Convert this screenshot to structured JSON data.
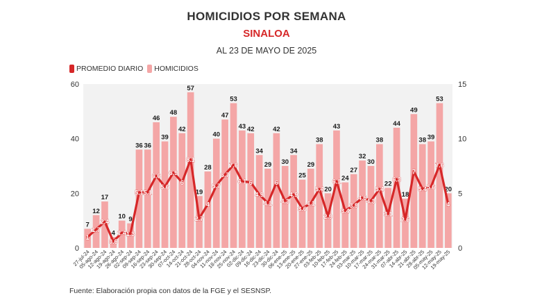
{
  "header": {
    "title": "HOMICIDIOS POR SEMANA",
    "subtitle": "SINALOA",
    "date_line": "AL 23 DE MAYO DE 2025"
  },
  "legend": {
    "items": [
      {
        "label": "PROMEDIO DIARIO",
        "color": "#d62728"
      },
      {
        "label": "HOMICIDIOS",
        "color": "#f4a6a6"
      }
    ]
  },
  "footer": {
    "source": "Fuente: Elaboración propia con datos de la FGE y el SESNSP."
  },
  "chart_data": {
    "type": "bar",
    "title": "HOMICIDIOS POR SEMANA",
    "subtitle": "SINALOA",
    "categories": [
      "27-jul-24",
      "05-ago-24",
      "12-ago-24",
      "19-ago-24",
      "26-ago-24",
      "02-sep-24",
      "09-sep-24",
      "16-sep-24",
      "23-sep-24",
      "30-sep-24",
      "07-oct-24",
      "14-oct-24",
      "21-oct-24",
      "28-oct-24",
      "04-nov-24",
      "11-nov-24",
      "18-nov-24",
      "25-nov-24",
      "02-dic-24",
      "09-dic-24",
      "16-dic-24",
      "23-dic-24",
      "30-dic-24",
      "06-ene-25",
      "13-ene-25",
      "20-ene-25",
      "27-ene-25",
      "03-feb-25",
      "10-feb-25",
      "17-feb-25",
      "24-feb-25",
      "03-mar-25",
      "10-mar-25",
      "17-mar-25",
      "24-mar-25",
      "31-mar-25",
      "07-abr-25",
      "14-abr-25",
      "21-abr-25",
      "28-abr-25",
      "05-may-25",
      "12-may-25",
      "19-may-25"
    ],
    "series": [
      {
        "name": "HOMICIDIOS",
        "axis": "left",
        "color": "#f4a6a6",
        "values": [
          7,
          12,
          17,
          4,
          10,
          9,
          36,
          36,
          46,
          39,
          48,
          42,
          57,
          19,
          28,
          40,
          47,
          53,
          43,
          42,
          34,
          29,
          42,
          30,
          34,
          25,
          29,
          38,
          20,
          43,
          24,
          27,
          32,
          30,
          38,
          22,
          44,
          18,
          49,
          38,
          39,
          53,
          20
        ],
        "labels": [
          "7",
          "12",
          "17",
          "4",
          "10",
          "9",
          "36",
          "36",
          "46",
          "39",
          "48",
          "42",
          "57",
          "19",
          "28",
          "40",
          "47",
          "53",
          "43",
          "42",
          "34",
          "29",
          "42",
          "30",
          "34",
          "25",
          "29",
          "38",
          "20",
          "43",
          "24",
          "27",
          "32",
          "30",
          "38",
          "22",
          "44",
          "18",
          "49",
          "38",
          "39",
          "53",
          "20"
        ]
      },
      {
        "name": "PROMEDIO DIARIO",
        "axis": "right",
        "type": "line",
        "color": "#d62728",
        "values": [
          1.0,
          1.7,
          2.4,
          0.6,
          1.4,
          1.3,
          5.1,
          5.1,
          6.6,
          5.6,
          6.9,
          6.0,
          8.1,
          2.7,
          4.0,
          5.7,
          6.7,
          7.6,
          6.1,
          6.0,
          4.9,
          4.1,
          6.0,
          4.3,
          4.9,
          3.6,
          4.1,
          5.4,
          2.9,
          6.1,
          3.4,
          3.9,
          4.6,
          4.3,
          5.4,
          3.1,
          6.3,
          2.6,
          7.0,
          5.4,
          5.6,
          7.6,
          4.0
        ],
        "labels": [
          "1",
          "1.7",
          "2.4",
          "0.6",
          "1.4",
          "1.3",
          "5.1",
          "5.1",
          "6.6",
          "5.6",
          "6.9",
          "6",
          "8.1",
          "2.7",
          "4",
          "5.7",
          "6.7",
          "7.6",
          "6.1",
          "6",
          "4.9",
          "4.1",
          "6",
          "4.3",
          "4.9",
          "3.6",
          "4.1",
          "5.4",
          "2.9",
          "6.1",
          "3.4",
          "3.9",
          "4.6",
          "4.3",
          "5.4",
          "3.1",
          "6.3",
          "2.6",
          "7",
          "5.4",
          "5.6",
          "7.6",
          "4"
        ]
      }
    ],
    "ylim_left": [
      0,
      60
    ],
    "yticks_left": [
      "0",
      "20",
      "40",
      "60"
    ],
    "ylim_right": [
      0,
      15
    ],
    "yticks_right": [
      "0",
      "5",
      "10",
      "15"
    ],
    "grid": false,
    "legend_position": "top-left",
    "plot_background": "#f2f2f2"
  }
}
